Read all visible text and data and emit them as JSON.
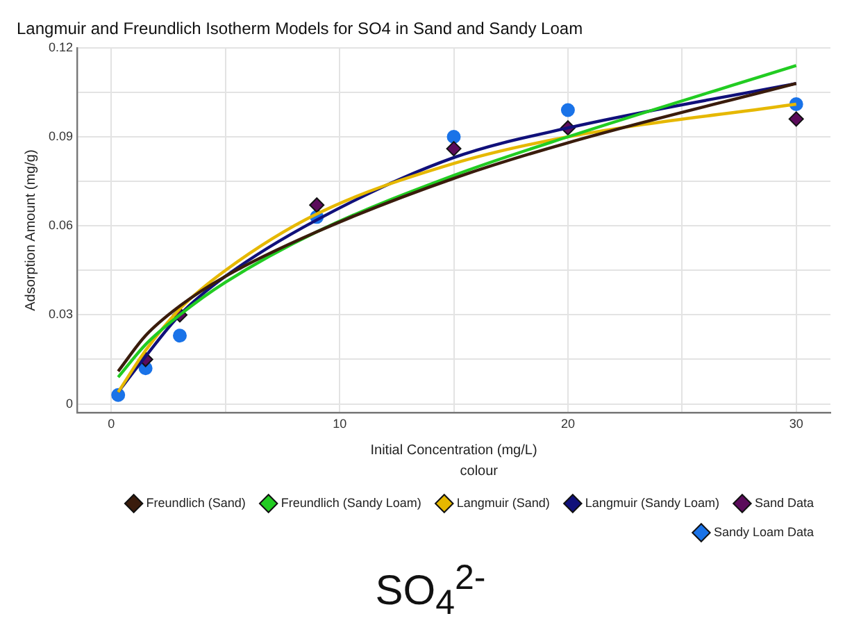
{
  "chart_data": {
    "type": "line",
    "title": "Langmuir and Freundlich Isotherm Models for SO4 in Sand and Sandy Loam",
    "xlabel": "Initial Concentration (mg/L)",
    "ylabel": "Adsorption Amount (mg/g)",
    "legend_title": "colour",
    "legend": "bottom",
    "grid": true,
    "annotations": [
      "SO$_{4}$$^{2-}$"
    ],
    "xlim": [
      -1.5,
      31.5
    ],
    "xticks": [
      0,
      {
        "value": 5,
        "label": null
      },
      10,
      {
        "value": 15,
        "label": null
      },
      20,
      {
        "value": 25,
        "label": null
      },
      30
    ],
    "ylim": [
      -0.003,
      0.12
    ],
    "yticks": [
      0,
      {
        "value": 0.015,
        "label": null
      },
      0.03,
      {
        "value": 0.045,
        "label": null
      },
      0.06,
      {
        "value": 0.075,
        "label": null
      },
      0.09,
      {
        "value": 0.105,
        "label": null
      },
      0.12
    ],
    "x": [
      0.3,
      1.5,
      3,
      5,
      9,
      15,
      20,
      30
    ],
    "series": [
      {
        "name": "Freundlich (Sand)",
        "color": "#3a1c0c",
        "marker": "none",
        "values": [
          0.011,
          0.023,
          0.033,
          0.043,
          0.058,
          0.076,
          0.088,
          0.108
        ]
      },
      {
        "name": "Freundlich (Sandy Loam)",
        "color": "#22cc22",
        "marker": "none",
        "values": [
          0.009,
          0.02,
          0.03,
          0.041,
          0.058,
          0.077,
          0.09,
          0.114
        ]
      },
      {
        "name": "Langmuir (Sand)",
        "color": "#e6b800",
        "marker": "none",
        "values": [
          0.004,
          0.018,
          0.032,
          0.045,
          0.064,
          0.081,
          0.09,
          0.101
        ]
      },
      {
        "name": "Langmuir (Sandy Loam)",
        "color": "#10107a",
        "marker": "none",
        "values": [
          0.004,
          0.016,
          0.03,
          0.043,
          0.062,
          0.083,
          0.093,
          0.108
        ]
      },
      {
        "name": "Sand Data",
        "type": "scatter",
        "color": "#5b0b5b",
        "marker": "diamond",
        "x": [
          1.5,
          3,
          9,
          15,
          20,
          30
        ],
        "values": [
          0.015,
          0.03,
          0.067,
          0.086,
          0.093,
          0.096
        ]
      },
      {
        "name": "Sandy Loam Data",
        "type": "scatter",
        "color": "#1a73e8",
        "marker": "circle",
        "x": [
          0.3,
          1.5,
          3,
          9,
          15,
          20,
          30
        ],
        "values": [
          0.003,
          0.012,
          0.023,
          0.063,
          0.09,
          0.099,
          0.101
        ]
      }
    ]
  }
}
